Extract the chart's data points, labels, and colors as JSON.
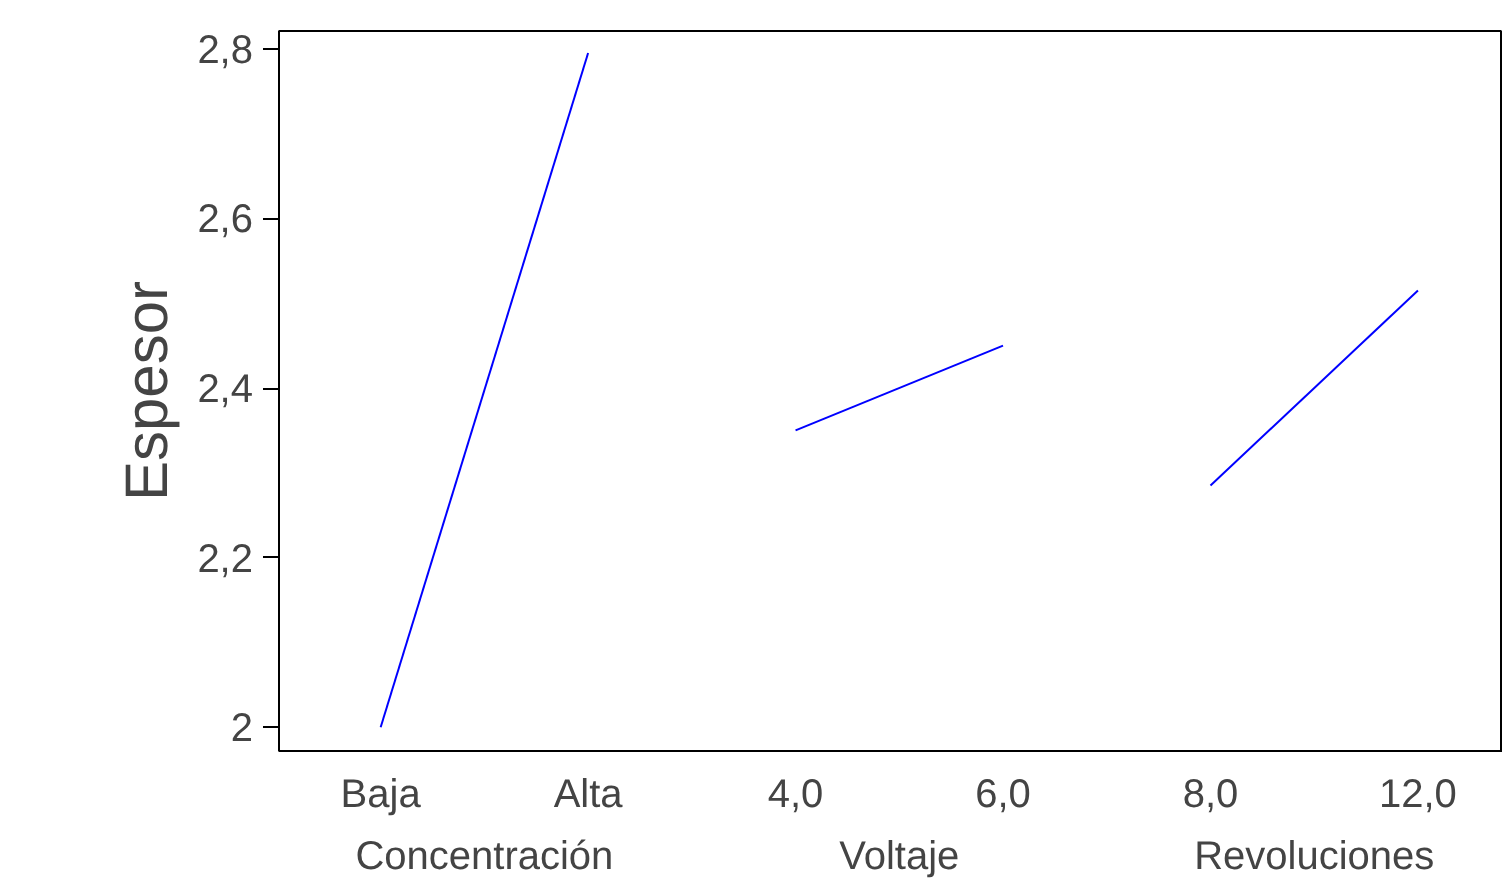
{
  "chart_data": {
    "type": "line",
    "ylabel": "Espesor",
    "categories": [
      "Baja",
      "Alta",
      "4,0",
      "6,0",
      "8,0",
      "12,0"
    ],
    "series": [
      {
        "color": "#0000ff",
        "values": [
          2.0,
          2.795,
          null,
          null,
          null,
          null
        ]
      },
      {
        "color": "#0000ff",
        "values": [
          null,
          null,
          2.35,
          2.45,
          null,
          null
        ]
      },
      {
        "color": "#0000ff",
        "values": [
          null,
          null,
          null,
          null,
          2.285,
          2.515
        ]
      }
    ],
    "ylim": [
      1.972,
      2.821
    ],
    "yticks": [
      2,
      {
        "value": 2.2,
        "label": "2,2"
      },
      {
        "value": 2.4,
        "label": "2,4"
      },
      {
        "value": 2.6,
        "label": "2,6"
      },
      {
        "value": 2.8,
        "label": "2,8"
      }
    ],
    "annotations": [
      "Concentración",
      "Voltaje",
      "Revoluciones"
    ],
    "grid": false
  }
}
